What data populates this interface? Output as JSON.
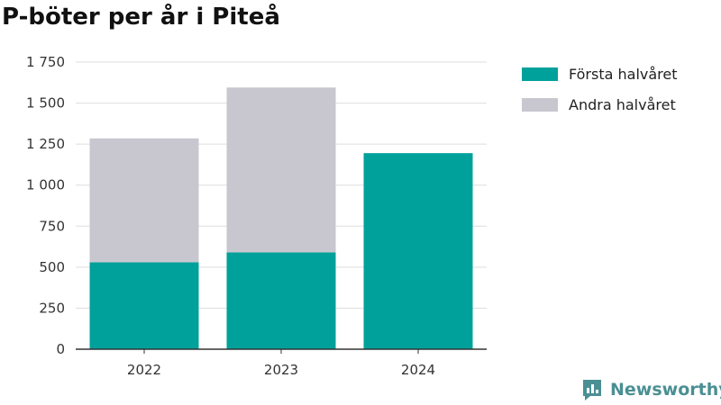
{
  "chart_data": {
    "type": "bar",
    "stacked": true,
    "title": "P-böter per år i Piteå",
    "categories": [
      "2022",
      "2023",
      "2024"
    ],
    "series": [
      {
        "name": "Första halvåret",
        "color": "#00a19a",
        "values": [
          530,
          590,
          1195
        ]
      },
      {
        "name": "Andra halvåret",
        "color": "#c8c7cf",
        "values": [
          755,
          1005,
          0
        ]
      }
    ],
    "yticks": [
      "0",
      "250",
      "500",
      "750",
      "1 000",
      "1 250",
      "1 500",
      "1 750"
    ],
    "ylim": [
      0,
      1750
    ],
    "grid": true,
    "legend_position": "top-right"
  },
  "branding": {
    "name": "Newsworthy",
    "icon": "newsworthy-logo-icon"
  }
}
